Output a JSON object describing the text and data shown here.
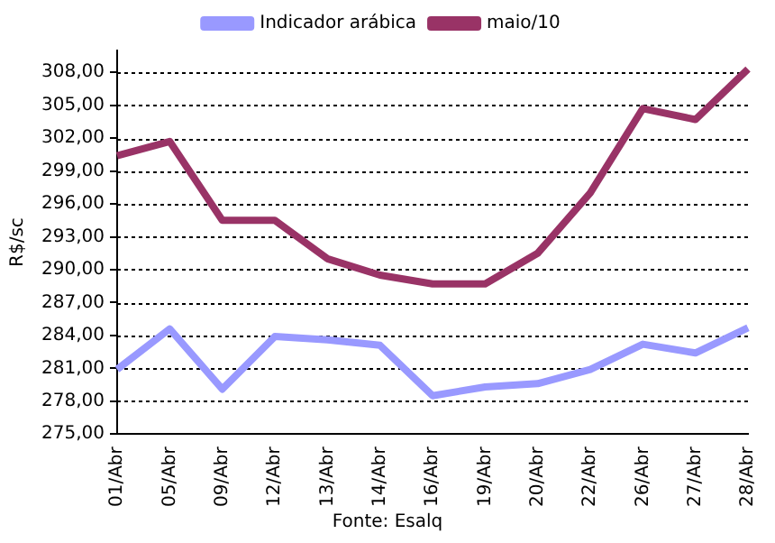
{
  "chart_data": {
    "type": "line",
    "ylabel": "R$/sc",
    "categories": [
      "01/Abr",
      "05/Abr",
      "09/Abr",
      "12/Abr",
      "13/Abr",
      "14/Abr",
      "16/Abr",
      "19/Abr",
      "20/Abr",
      "22/Abr",
      "26/Abr",
      "27/Abr",
      "28/Abr"
    ],
    "series": [
      {
        "name": "Indicador arábica",
        "color": "#9999ff",
        "values": [
          280.9,
          284.6,
          279.1,
          283.9,
          283.6,
          283.1,
          278.5,
          279.3,
          279.6,
          280.9,
          283.2,
          282.4,
          284.7
        ]
      },
      {
        "name": "maio/10",
        "color": "#993366",
        "values": [
          300.4,
          301.7,
          294.5,
          294.5,
          291.0,
          289.5,
          288.7,
          288.7,
          291.5,
          297.0,
          304.7,
          303.7,
          308.3
        ]
      }
    ],
    "ylim": [
      275,
      310
    ],
    "yticks": [
      {
        "value": 275,
        "label": "275,00"
      },
      {
        "value": 278,
        "label": "278,00"
      },
      {
        "value": 281,
        "label": "281,00"
      },
      {
        "value": 284,
        "label": "284,00"
      },
      {
        "value": 287,
        "label": "287,00"
      },
      {
        "value": 290,
        "label": "290,00"
      },
      {
        "value": 293,
        "label": "293,00"
      },
      {
        "value": 296,
        "label": "296,00"
      },
      {
        "value": 299,
        "label": "299,00"
      },
      {
        "value": 302,
        "label": "302,00"
      },
      {
        "value": 305,
        "label": "305,00"
      },
      {
        "value": 308,
        "label": "308,00"
      }
    ],
    "grid": "y",
    "legend": "top",
    "marker": "none",
    "line_style": "solid",
    "annotations": [
      "Fonte: Esalq"
    ]
  }
}
